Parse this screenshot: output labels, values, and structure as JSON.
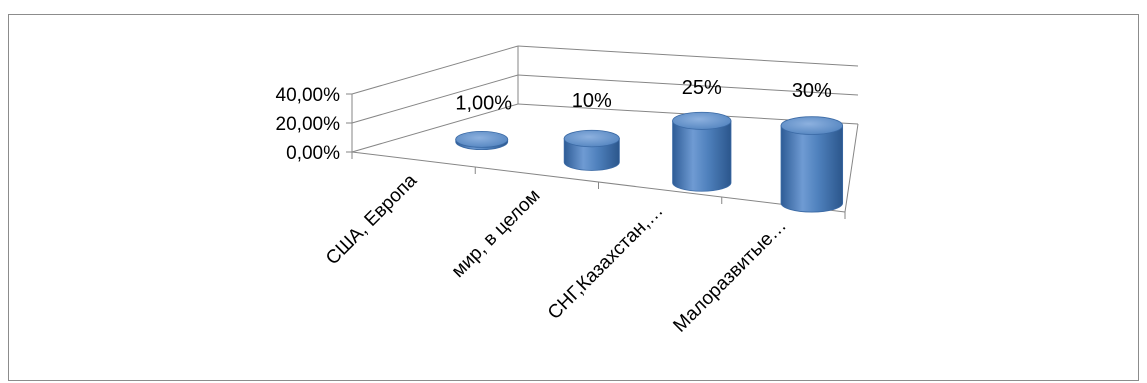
{
  "chart_data": {
    "type": "bar",
    "style": "3d-cylinder",
    "categories": [
      "США, Европа",
      "мир, в целом",
      "СНГ,Казахстан,…",
      "Малоразвитые…"
    ],
    "values": [
      0.01,
      0.1,
      0.25,
      0.3
    ],
    "data_labels": [
      "1,00%",
      "10%",
      "25%",
      "30%"
    ],
    "y_ticks": [
      "0,00%",
      "20,00%",
      "40,00%"
    ],
    "ylim": [
      0,
      0.4
    ],
    "grid": true,
    "colors": {
      "bar": "#4f81bd",
      "bar_light": "#a8c4e8",
      "bar_dark": "#2e5c96",
      "axis": "#868686",
      "grid": "#868686"
    }
  }
}
